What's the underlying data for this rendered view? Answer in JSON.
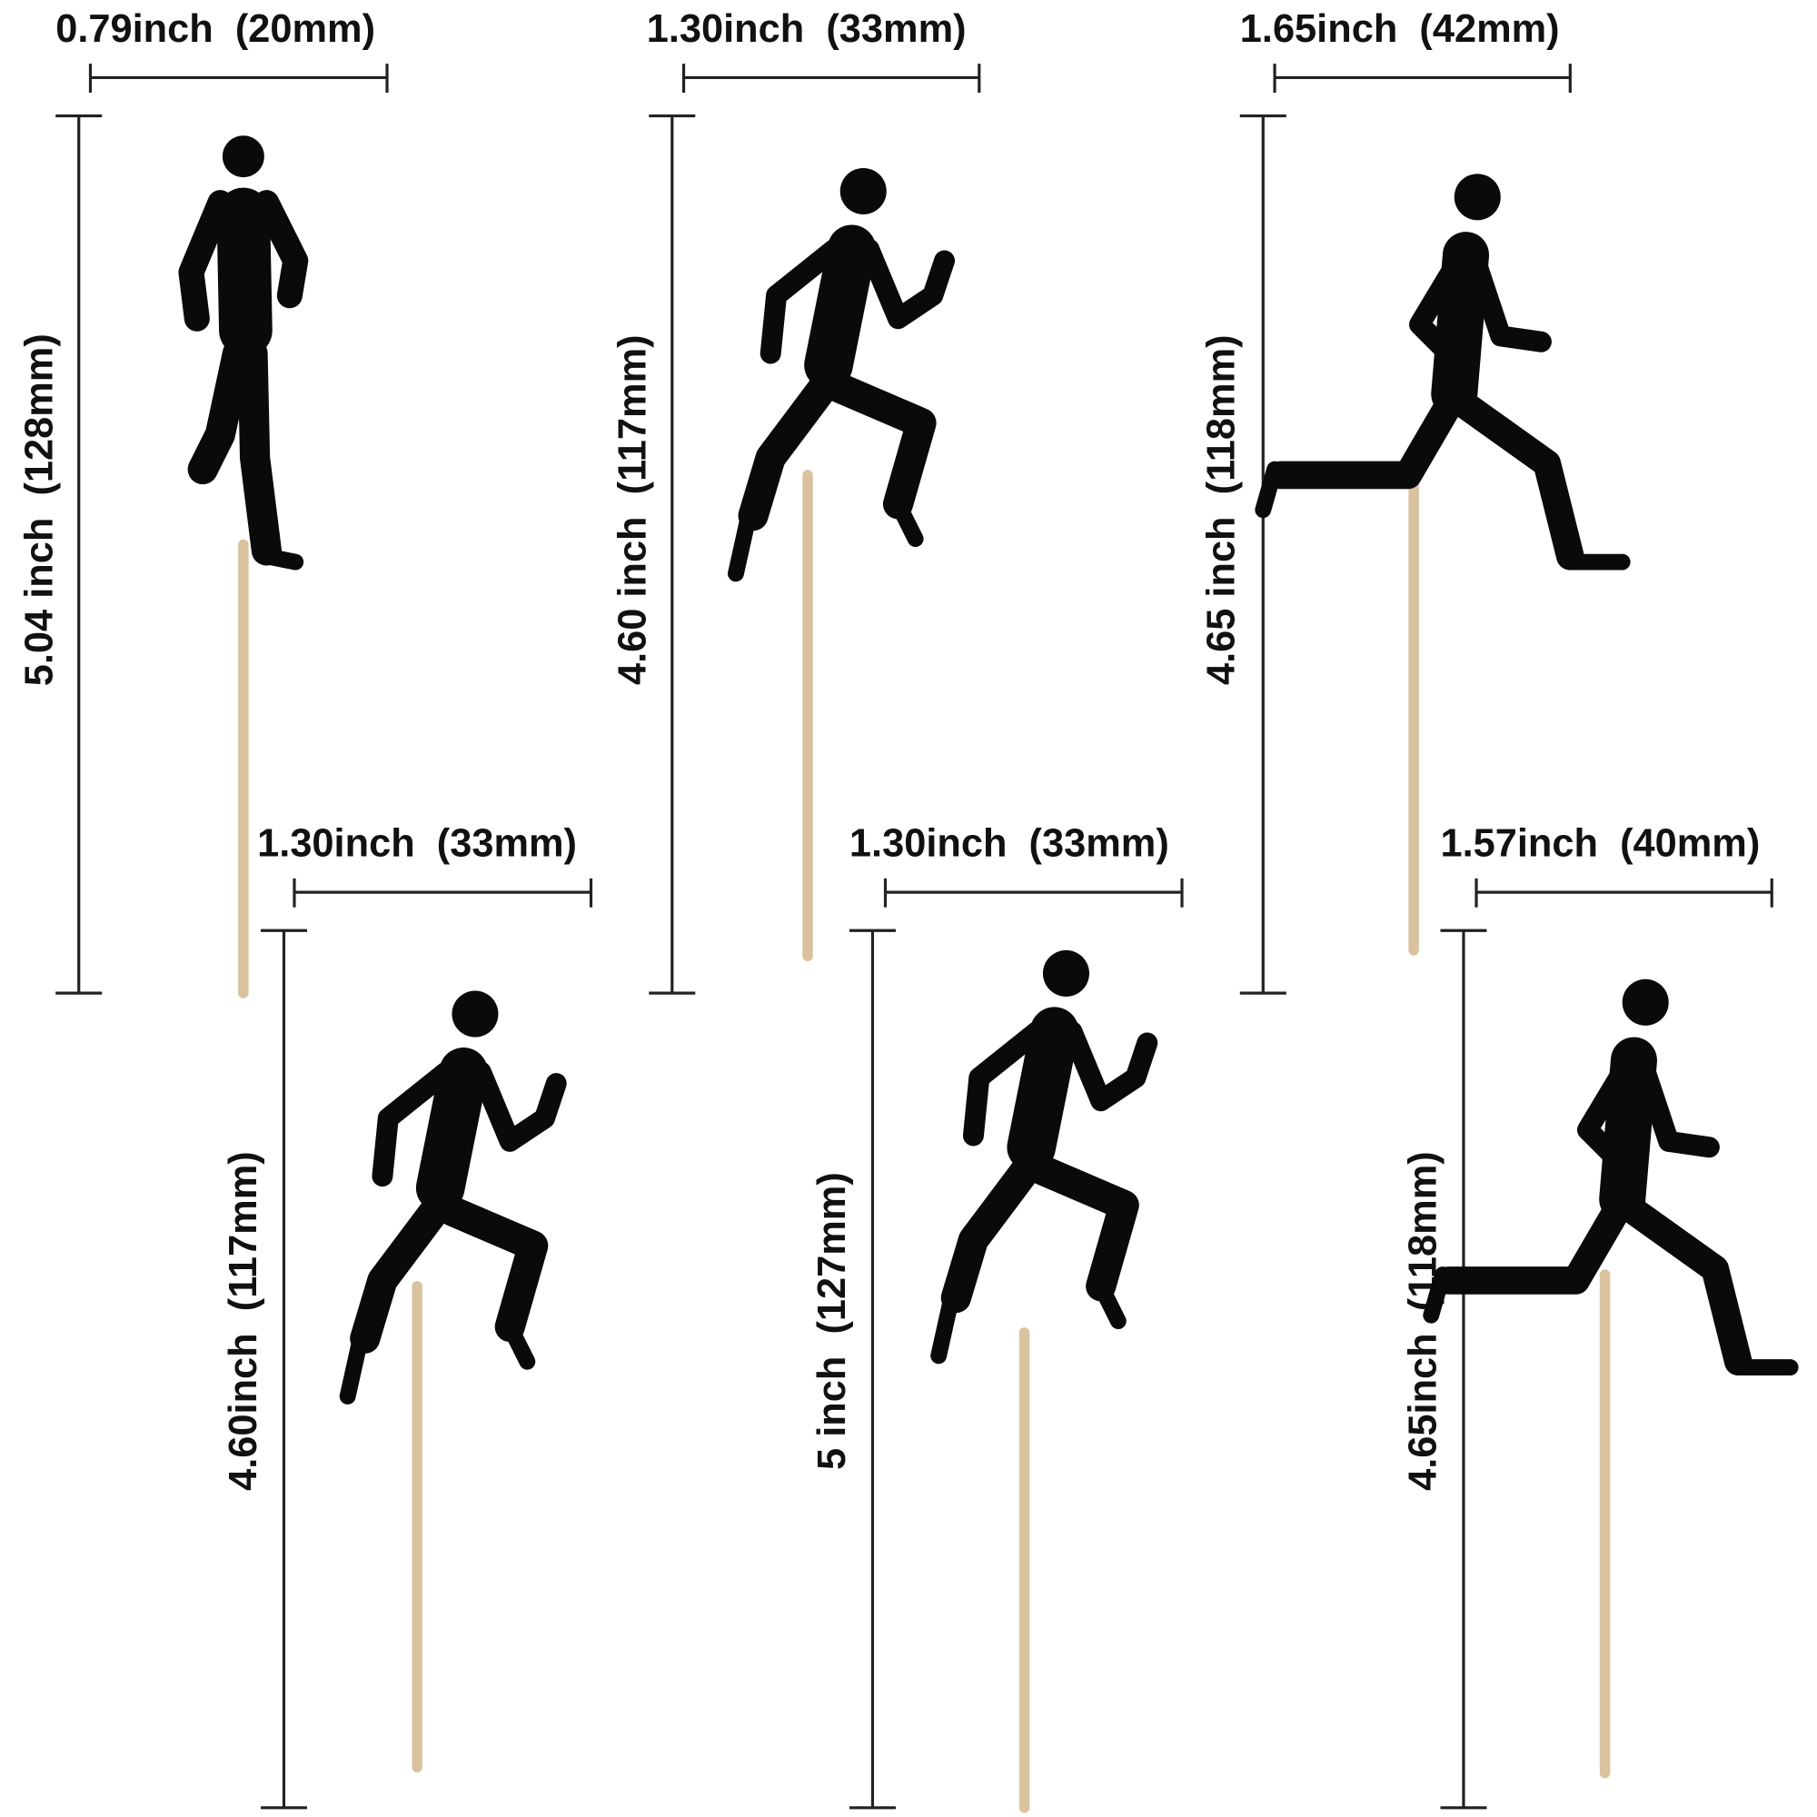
{
  "items": [
    {
      "width_label": "0.79inch  (20mm)",
      "height_label": "5.04 inch  (128mm)"
    },
    {
      "width_label": "1.30inch  (33mm)",
      "height_label": "4.60 inch  (117mm)"
    },
    {
      "width_label": "1.65inch  (42mm)",
      "height_label": "4.65 inch  (118mm)"
    },
    {
      "width_label": "1.30inch  (33mm)",
      "height_label": "4.60inch  (117mm)"
    },
    {
      "width_label": "1.30inch  (33mm)",
      "height_label": "5 inch  (127mm)"
    },
    {
      "width_label": "1.57inch  (40mm)",
      "height_label": "4.65inch  (118mm)"
    }
  ]
}
